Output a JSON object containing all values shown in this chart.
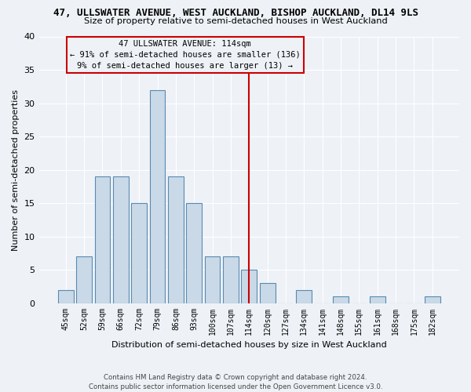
{
  "title1": "47, ULLSWATER AVENUE, WEST AUCKLAND, BISHOP AUCKLAND, DL14 9LS",
  "title2": "Size of property relative to semi-detached houses in West Auckland",
  "xlabel": "Distribution of semi-detached houses by size in West Auckland",
  "ylabel": "Number of semi-detached properties",
  "categories": [
    "45sqm",
    "52sqm",
    "59sqm",
    "66sqm",
    "72sqm",
    "79sqm",
    "86sqm",
    "93sqm",
    "100sqm",
    "107sqm",
    "114sqm",
    "120sqm",
    "127sqm",
    "134sqm",
    "141sqm",
    "148sqm",
    "155sqm",
    "161sqm",
    "168sqm",
    "175sqm",
    "182sqm"
  ],
  "values": [
    2,
    7,
    19,
    19,
    15,
    32,
    19,
    15,
    7,
    7,
    5,
    3,
    0,
    2,
    0,
    1,
    0,
    1,
    0,
    0,
    1
  ],
  "bar_color": "#c9d9e8",
  "bar_edge_color": "#5a8ab0",
  "vline_color": "#cc0000",
  "annotation_title": "47 ULLSWATER AVENUE: 114sqm",
  "annotation_line1": "← 91% of semi-detached houses are smaller (136)",
  "annotation_line2": "9% of semi-detached houses are larger (13) →",
  "ylim": [
    0,
    40
  ],
  "yticks": [
    0,
    5,
    10,
    15,
    20,
    25,
    30,
    35,
    40
  ],
  "footnote": "Contains HM Land Registry data © Crown copyright and database right 2024.\nContains public sector information licensed under the Open Government Licence v3.0.",
  "bg_color": "#eef2f7",
  "grid_color": "#ffffff"
}
